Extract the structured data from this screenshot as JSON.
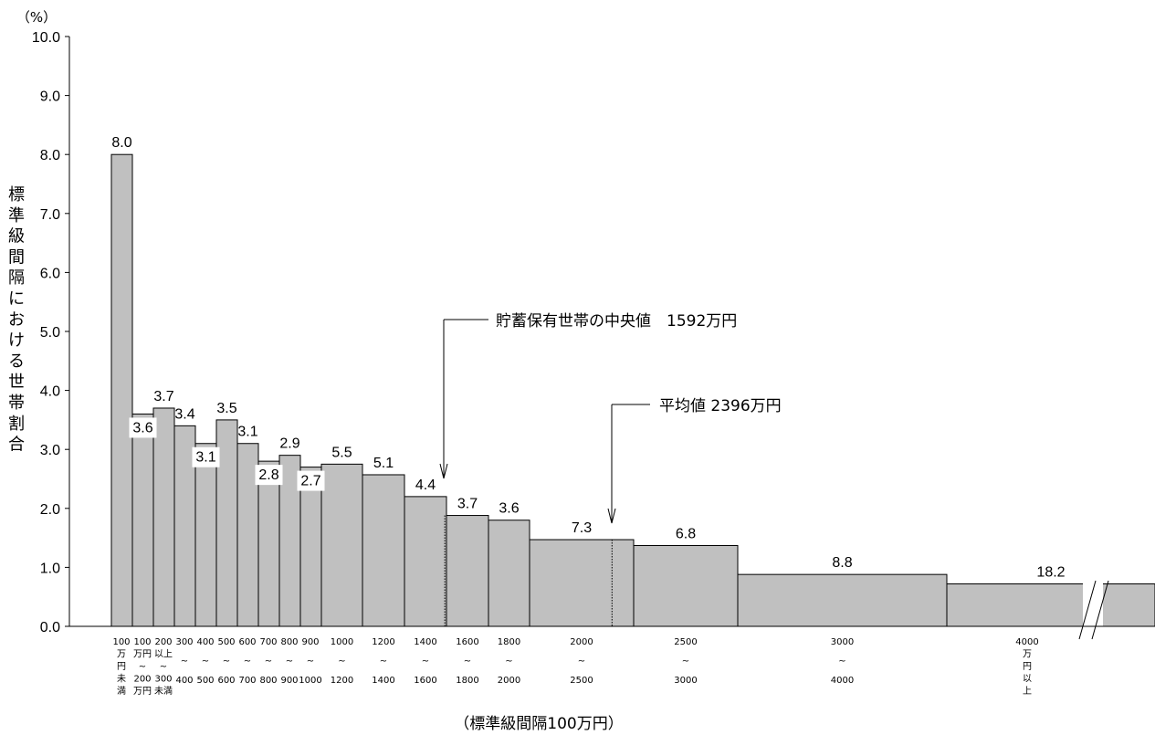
{
  "chart_data": {
    "type": "bar",
    "title": "",
    "y_unit": "（%）",
    "ylabel": "標準級間隔における世帯割合",
    "xlabel": "（標準級間隔100万円）",
    "ylim": [
      0,
      10
    ],
    "yticks": [
      "0.0",
      "1.0",
      "2.0",
      "3.0",
      "4.0",
      "5.0",
      "6.0",
      "7.0",
      "8.0",
      "9.0",
      "10.0"
    ],
    "bars": [
      {
        "from": 0,
        "to": 100,
        "value": 8.0,
        "label": "8.0",
        "cat": [
          [
            "100"
          ],
          [
            "万"
          ],
          [
            "円"
          ],
          [
            "未"
          ],
          [
            "満"
          ]
        ]
      },
      {
        "from": 100,
        "to": 200,
        "value": 3.6,
        "label": "3.6",
        "cat": [
          [
            "100"
          ],
          [
            "万円"
          ],
          [
            "~"
          ],
          [
            "200"
          ],
          [
            "万円"
          ]
        ]
      },
      {
        "from": 200,
        "to": 300,
        "value": 3.7,
        "label": "3.7",
        "cat": [
          [
            "200"
          ],
          [
            "以上"
          ],
          [
            "~"
          ],
          [
            "300"
          ],
          [
            "未満"
          ]
        ]
      },
      {
        "from": 300,
        "to": 400,
        "value": 3.4,
        "label": "3.4",
        "cat": [
          [
            "300"
          ],
          [
            "~"
          ],
          [
            "400"
          ]
        ]
      },
      {
        "from": 400,
        "to": 500,
        "value": 3.1,
        "label": "3.1",
        "cat": [
          [
            "400"
          ],
          [
            "~"
          ],
          [
            "500"
          ]
        ]
      },
      {
        "from": 500,
        "to": 600,
        "value": 3.5,
        "label": "3.5",
        "cat": [
          [
            "500"
          ],
          [
            "~"
          ],
          [
            "600"
          ]
        ]
      },
      {
        "from": 600,
        "to": 700,
        "value": 3.1,
        "label": "3.1",
        "cat": [
          [
            "600"
          ],
          [
            "~"
          ],
          [
            "700"
          ]
        ]
      },
      {
        "from": 700,
        "to": 800,
        "value": 2.8,
        "label": "2.8",
        "cat": [
          [
            "700"
          ],
          [
            "~"
          ],
          [
            "800"
          ]
        ]
      },
      {
        "from": 800,
        "to": 900,
        "value": 2.9,
        "label": "2.9",
        "cat": [
          [
            "800"
          ],
          [
            "~"
          ],
          [
            "900"
          ]
        ]
      },
      {
        "from": 900,
        "to": 1000,
        "value": 2.7,
        "label": "2.7",
        "cat": [
          [
            "900"
          ],
          [
            "~"
          ],
          [
            "1000"
          ]
        ]
      },
      {
        "from": 1000,
        "to": 1200,
        "value": 5.5,
        "label": "5.5",
        "cat": [
          [
            "1000"
          ],
          [
            "~"
          ],
          [
            "1200"
          ]
        ]
      },
      {
        "from": 1200,
        "to": 1400,
        "value": 5.1,
        "label": "5.1",
        "cat": [
          [
            "1200"
          ],
          [
            "~"
          ],
          [
            "1400"
          ]
        ]
      },
      {
        "from": 1400,
        "to": 1600,
        "value": 4.4,
        "label": "4.4",
        "cat": [
          [
            "1400"
          ],
          [
            "~"
          ],
          [
            "1600"
          ]
        ]
      },
      {
        "from": 1600,
        "to": 1800,
        "value": 3.7,
        "label": "3.7",
        "cat": [
          [
            "1600"
          ],
          [
            "~"
          ],
          [
            "1800"
          ]
        ]
      },
      {
        "from": 1800,
        "to": 2000,
        "value": 3.6,
        "label": "3.6",
        "cat": [
          [
            "1800"
          ],
          [
            "~"
          ],
          [
            "2000"
          ]
        ]
      },
      {
        "from": 2000,
        "to": 2500,
        "value": 7.3,
        "label": "7.3",
        "cat": [
          [
            "2000"
          ],
          [
            "~"
          ],
          [
            "2500"
          ]
        ]
      },
      {
        "from": 2500,
        "to": 3000,
        "value": 6.8,
        "label": "6.8",
        "cat": [
          [
            "2500"
          ],
          [
            "~"
          ],
          [
            "3000"
          ]
        ]
      },
      {
        "from": 3000,
        "to": 4000,
        "value": 8.8,
        "label": "8.8",
        "cat": [
          [
            "3000"
          ],
          [
            "~"
          ],
          [
            "4000"
          ]
        ]
      },
      {
        "from": 4000,
        "to": null,
        "value": 18.2,
        "label": "18.2",
        "cat": [
          [
            "4000"
          ],
          [
            "万"
          ],
          [
            "円"
          ],
          [
            "以"
          ],
          [
            "上"
          ]
        ]
      }
    ],
    "annotations": [
      {
        "text": "貯蓄保有世帯の中央値　1592万円",
        "value": 1592
      },
      {
        "text": "平均値 2396万円",
        "value": 2396
      }
    ],
    "axis_break": true,
    "grid": false,
    "bar_color": "#c0c0c0",
    "edge_color": "#000000"
  }
}
